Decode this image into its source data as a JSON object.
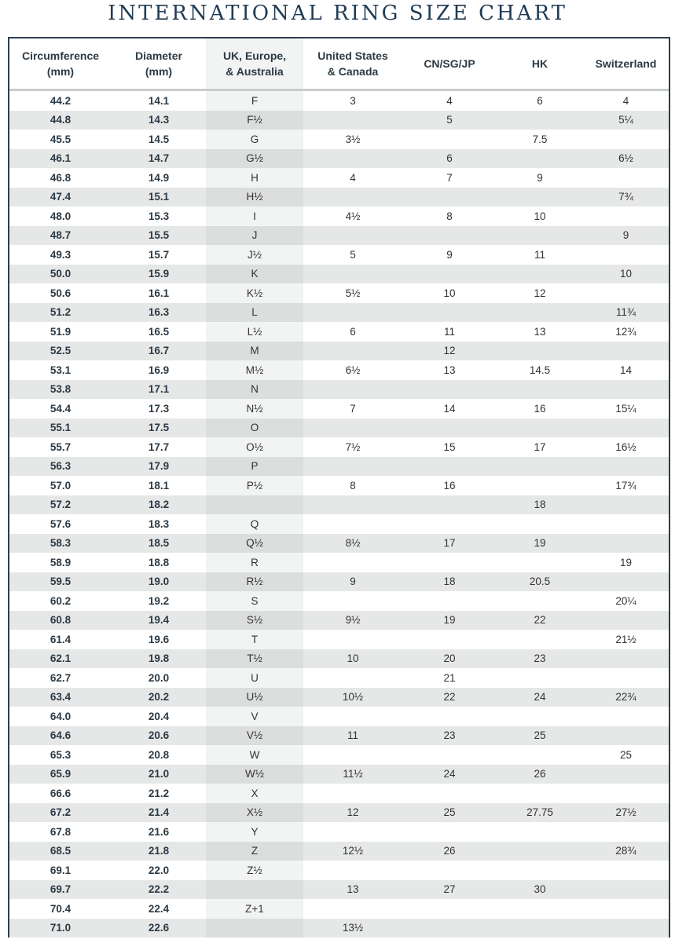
{
  "title": "INTERNATIONAL RING SIZE CHART",
  "columns": [
    [
      "Circumference",
      "(mm)"
    ],
    [
      "Diameter",
      "(mm)"
    ],
    [
      "UK, Europe,",
      "& Australia"
    ],
    [
      "United States",
      "& Canada"
    ],
    [
      "CN/SG/JP",
      ""
    ],
    [
      "HK",
      ""
    ],
    [
      "Switzerland",
      ""
    ]
  ],
  "rows": [
    [
      "44.2",
      "14.1",
      "F",
      "3",
      "4",
      "6",
      "4"
    ],
    [
      "44.8",
      "14.3",
      "F½",
      "",
      "5",
      "",
      "5¼"
    ],
    [
      "45.5",
      "14.5",
      "G",
      "3½",
      "",
      "7.5",
      ""
    ],
    [
      "46.1",
      "14.7",
      "G½",
      "",
      "6",
      "",
      "6½"
    ],
    [
      "46.8",
      "14.9",
      "H",
      "4",
      "7",
      "9",
      ""
    ],
    [
      "47.4",
      "15.1",
      "H½",
      "",
      "",
      "",
      "7¾"
    ],
    [
      "48.0",
      "15.3",
      "I",
      "4½",
      "8",
      "10",
      ""
    ],
    [
      "48.7",
      "15.5",
      "J",
      "",
      "",
      "",
      "9"
    ],
    [
      "49.3",
      "15.7",
      "J½",
      "5",
      "9",
      "11",
      ""
    ],
    [
      "50.0",
      "15.9",
      "K",
      "",
      "",
      "",
      "10"
    ],
    [
      "50.6",
      "16.1",
      "K½",
      "5½",
      "10",
      "12",
      ""
    ],
    [
      "51.2",
      "16.3",
      "L",
      "",
      "",
      "",
      "11¾"
    ],
    [
      "51.9",
      "16.5",
      "L½",
      "6",
      "11",
      "13",
      "12¾"
    ],
    [
      "52.5",
      "16.7",
      "M",
      "",
      "12",
      "",
      ""
    ],
    [
      "53.1",
      "16.9",
      "M½",
      "6½",
      "13",
      "14.5",
      "14"
    ],
    [
      "53.8",
      "17.1",
      "N",
      "",
      "",
      "",
      ""
    ],
    [
      "54.4",
      "17.3",
      "N½",
      "7",
      "14",
      "16",
      "15¼"
    ],
    [
      "55.1",
      "17.5",
      "O",
      "",
      "",
      "",
      ""
    ],
    [
      "55.7",
      "17.7",
      "O½",
      "7½",
      "15",
      "17",
      "16½"
    ],
    [
      "56.3",
      "17.9",
      "P",
      "",
      "",
      "",
      ""
    ],
    [
      "57.0",
      "18.1",
      "P½",
      "8",
      "16",
      "",
      "17¾"
    ],
    [
      "57.2",
      "18.2",
      "",
      "",
      "",
      "18",
      ""
    ],
    [
      "57.6",
      "18.3",
      "Q",
      "",
      "",
      "",
      ""
    ],
    [
      "58.3",
      "18.5",
      "Q½",
      "8½",
      "17",
      "19",
      ""
    ],
    [
      "58.9",
      "18.8",
      "R",
      "",
      "",
      "",
      "19"
    ],
    [
      "59.5",
      "19.0",
      "R½",
      "9",
      "18",
      "20.5",
      ""
    ],
    [
      "60.2",
      "19.2",
      "S",
      "",
      "",
      "",
      "20¼"
    ],
    [
      "60.8",
      "19.4",
      "S½",
      "9½",
      "19",
      "22",
      ""
    ],
    [
      "61.4",
      "19.6",
      "T",
      "",
      "",
      "",
      "21½"
    ],
    [
      "62.1",
      "19.8",
      "T½",
      "10",
      "20",
      "23",
      ""
    ],
    [
      "62.7",
      "20.0",
      "U",
      "",
      "21",
      "",
      ""
    ],
    [
      "63.4",
      "20.2",
      "U½",
      "10½",
      "22",
      "24",
      "22¾"
    ],
    [
      "64.0",
      "20.4",
      "V",
      "",
      "",
      "",
      ""
    ],
    [
      "64.6",
      "20.6",
      "V½",
      "11",
      "23",
      "25",
      ""
    ],
    [
      "65.3",
      "20.8",
      "W",
      "",
      "",
      "",
      "25"
    ],
    [
      "65.9",
      "21.0",
      "W½",
      "11½",
      "24",
      "26",
      ""
    ],
    [
      "66.6",
      "21.2",
      "X",
      "",
      "",
      "",
      ""
    ],
    [
      "67.2",
      "21.4",
      "X½",
      "12",
      "25",
      "27.75",
      "27½"
    ],
    [
      "67.8",
      "21.6",
      "Y",
      "",
      "",
      "",
      ""
    ],
    [
      "68.5",
      "21.8",
      "Z",
      "12½",
      "26",
      "",
      "28¾"
    ],
    [
      "69.1",
      "22.0",
      "Z½",
      "",
      "",
      "",
      ""
    ],
    [
      "69.7",
      "22.2",
      "",
      "13",
      "27",
      "30",
      ""
    ],
    [
      "70.4",
      "22.4",
      "Z+1",
      "",
      "",
      "",
      ""
    ],
    [
      "71.0",
      "22.6",
      "",
      "13½",
      "",
      "",
      ""
    ]
  ]
}
